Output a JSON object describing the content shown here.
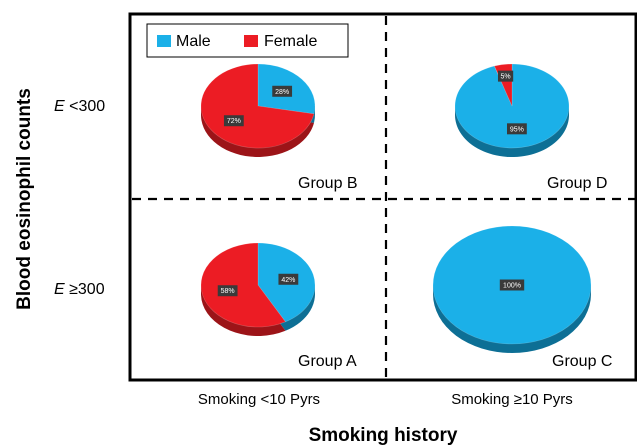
{
  "colors": {
    "male": "#1bb0e8",
    "male_dark": "#0d6f95",
    "female": "#ec1c24",
    "female_dark": "#9c1418"
  },
  "chart_data": {
    "type": "pie",
    "xlabel": "Smoking history",
    "ylabel": "Blood eosinophil counts",
    "x_categories": [
      "Smoking <10 Pyrs",
      "Smoking ≥10 Pyrs"
    ],
    "y_categories": [
      {
        "prefix": "E",
        "rest": " <300"
      },
      {
        "prefix": "E",
        "rest": " ≥300"
      }
    ],
    "legend": {
      "position": "top-left",
      "entries": [
        "Male",
        "Female"
      ]
    },
    "panels": [
      {
        "group": "Group B",
        "row": 0,
        "col": 0,
        "male": 28,
        "female": 72,
        "male_label": "28%",
        "female_label": "72%",
        "size": "small"
      },
      {
        "group": "Group D",
        "row": 0,
        "col": 1,
        "male": 95,
        "female": 5,
        "male_label": "95%",
        "female_label": "5%",
        "size": "small"
      },
      {
        "group": "Group A",
        "row": 1,
        "col": 0,
        "male": 42,
        "female": 58,
        "male_label": "42%",
        "female_label": "58%",
        "size": "small"
      },
      {
        "group": "Group C",
        "row": 1,
        "col": 1,
        "male": 100,
        "female": 0,
        "male_label": "100%",
        "female_label": "",
        "size": "large"
      }
    ]
  }
}
